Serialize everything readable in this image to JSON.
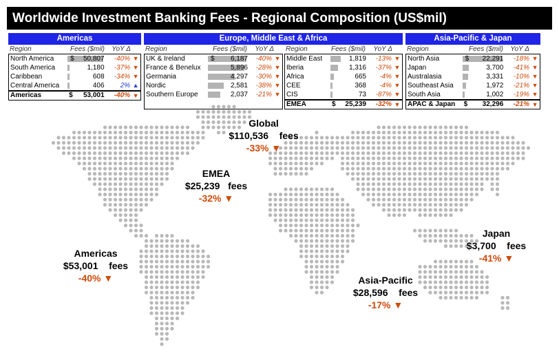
{
  "title": "Worldwide Investment Banking Fees - Regional Composition (US$mil)",
  "colors": {
    "header_blue": "#1f24e6",
    "down": "#d04a0a",
    "up": "#1f3fd6",
    "bar": "#b3b3b3",
    "dot": "#b8b8b8"
  },
  "column_headers": {
    "region": "Region",
    "fees": "Fees ($mil)",
    "yoy": "YoY Δ"
  },
  "panels": {
    "americas": {
      "header": "Americas",
      "rows": [
        {
          "region": "North America",
          "fees": "50,807",
          "yoy": "-40%",
          "dir": "down",
          "value": 50807,
          "dollar": "$"
        },
        {
          "region": "South America",
          "fees": "1,180",
          "yoy": "-37%",
          "dir": "down",
          "value": 1180
        },
        {
          "region": "Caribbean",
          "fees": "608",
          "yoy": "-34%",
          "dir": "down",
          "value": 608
        },
        {
          "region": "Central America",
          "fees": "406",
          "yoy": "2%",
          "dir": "up",
          "value": 406
        }
      ],
      "total": {
        "region": "Americas",
        "dollar": "$",
        "fees": "53,001",
        "yoy": "-40%",
        "dir": "down"
      }
    },
    "emea_left": {
      "rows": [
        {
          "region": "UK & Ireland",
          "fees": "6,187",
          "yoy": "-40%",
          "dir": "down",
          "value": 6187,
          "dollar": "$"
        },
        {
          "region": "France & Benelux",
          "fees": "5,896",
          "yoy": "-28%",
          "dir": "down",
          "value": 5896
        },
        {
          "region": "Germania",
          "fees": "4,297",
          "yoy": "-30%",
          "dir": "down",
          "value": 4297
        },
        {
          "region": "Nordic",
          "fees": "2,581",
          "yoy": "-38%",
          "dir": "down",
          "value": 2581
        },
        {
          "region": "Southern Europe",
          "fees": "2,037",
          "yoy": "-21%",
          "dir": "down",
          "value": 2037
        }
      ]
    },
    "emea_right": {
      "rows": [
        {
          "region": "Middle East",
          "fees": "1,819",
          "yoy": "-13%",
          "dir": "down",
          "value": 1819
        },
        {
          "region": "Iberia",
          "fees": "1,316",
          "yoy": "-37%",
          "dir": "down",
          "value": 1316
        },
        {
          "region": "Africa",
          "fees": "665",
          "yoy": "-4%",
          "dir": "down",
          "value": 665
        },
        {
          "region": "CEE",
          "fees": "368",
          "yoy": "-4%",
          "dir": "down",
          "value": 368
        },
        {
          "region": "CIS",
          "fees": "73",
          "yoy": "-87%",
          "dir": "down",
          "value": 73
        }
      ],
      "total": {
        "region": "EMEA",
        "dollar": "$",
        "fees": "25,239",
        "yoy": "-32%",
        "dir": "down"
      }
    },
    "emea": {
      "header": "Europe, Middle East & Africa"
    },
    "apj": {
      "header": "Asia-Pacific & Japan",
      "rows": [
        {
          "region": "North Asia",
          "fees": "22,291",
          "yoy": "-18%",
          "dir": "down",
          "value": 22291,
          "dollar": "$"
        },
        {
          "region": "Japan",
          "fees": "3,700",
          "yoy": "-41%",
          "dir": "down",
          "value": 3700
        },
        {
          "region": "Australasia",
          "fees": "3,331",
          "yoy": "-10%",
          "dir": "down",
          "value": 3331
        },
        {
          "region": "Southeast Asia",
          "fees": "1,972",
          "yoy": "-21%",
          "dir": "down",
          "value": 1972
        },
        {
          "region": "South Asia",
          "fees": "1,002",
          "yoy": "-19%",
          "dir": "down",
          "value": 1002
        }
      ],
      "total": {
        "region": "APAC & Japan",
        "dollar": "$",
        "fees": "32,296",
        "yoy": "-21%",
        "dir": "down"
      }
    }
  },
  "map_labels": {
    "global": {
      "name": "Global",
      "amount": "$110,536",
      "unit": "fees",
      "pct": "-33%"
    },
    "emea": {
      "name": "EMEA",
      "amount": "$25,239",
      "unit": "fees",
      "pct": "-32%"
    },
    "americas": {
      "name": "Americas",
      "amount": "$53,001",
      "unit": "fees",
      "pct": "-40%"
    },
    "asia_pacific": {
      "name": "Asia-Pacific",
      "amount": "$28,596",
      "unit": "fees",
      "pct": "-17%"
    },
    "japan": {
      "name": "Japan",
      "amount": "$3,700",
      "unit": "fees",
      "pct": "-41%"
    }
  },
  "chart_data": {
    "type": "table",
    "title": "Worldwide Investment Banking Fees - Regional Composition (US$mil)",
    "columns": [
      "Region",
      "Fees ($mil)",
      "YoY Δ"
    ],
    "groups": [
      {
        "name": "Americas",
        "rows": [
          [
            "North America",
            50807,
            "-40%"
          ],
          [
            "South America",
            1180,
            "-37%"
          ],
          [
            "Caribbean",
            608,
            "-34%"
          ],
          [
            "Central America",
            406,
            "2%"
          ]
        ],
        "total": [
          "Americas",
          53001,
          "-40%"
        ]
      },
      {
        "name": "Europe, Middle East & Africa",
        "rows": [
          [
            "UK & Ireland",
            6187,
            "-40%"
          ],
          [
            "France & Benelux",
            5896,
            "-28%"
          ],
          [
            "Germania",
            4297,
            "-30%"
          ],
          [
            "Nordic",
            2581,
            "-38%"
          ],
          [
            "Southern Europe",
            2037,
            "-21%"
          ],
          [
            "Middle East",
            1819,
            "-13%"
          ],
          [
            "Iberia",
            1316,
            "-37%"
          ],
          [
            "Africa",
            665,
            "-4%"
          ],
          [
            "CEE",
            368,
            "-4%"
          ],
          [
            "CIS",
            73,
            "-87%"
          ]
        ],
        "total": [
          "EMEA",
          25239,
          "-32%"
        ]
      },
      {
        "name": "Asia-Pacific & Japan",
        "rows": [
          [
            "North Asia",
            22291,
            "-18%"
          ],
          [
            "Japan",
            3700,
            "-41%"
          ],
          [
            "Australasia",
            3331,
            "-10%"
          ],
          [
            "Southeast Asia",
            1972,
            "-21%"
          ],
          [
            "South Asia",
            1002,
            "-19%"
          ]
        ],
        "total": [
          "APAC & Japan",
          32296,
          "-21%"
        ]
      }
    ],
    "map_callouts": [
      {
        "region": "Global",
        "fees": 110536,
        "yoy": "-33%"
      },
      {
        "region": "EMEA",
        "fees": 25239,
        "yoy": "-32%"
      },
      {
        "region": "Americas",
        "fees": 53001,
        "yoy": "-40%"
      },
      {
        "region": "Asia-Pacific",
        "fees": 28596,
        "yoy": "-17%"
      },
      {
        "region": "Japan",
        "fees": 3700,
        "yoy": "-41%"
      }
    ]
  }
}
